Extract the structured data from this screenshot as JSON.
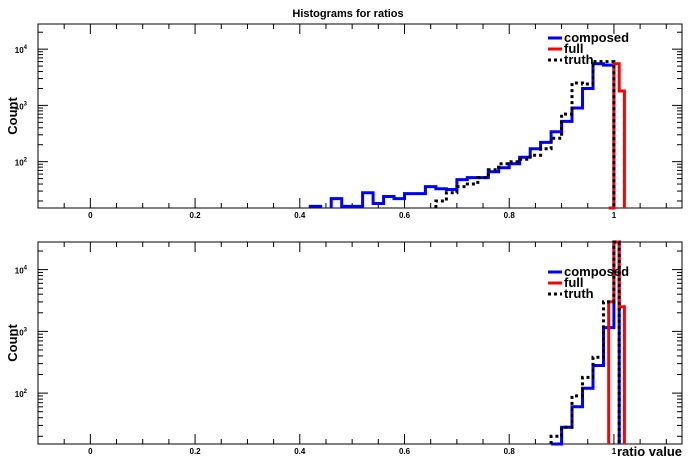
{
  "figure": {
    "title": "Histograms for ratios",
    "xlabel": "ratio value"
  },
  "colors": {
    "composed": "#0000ff",
    "full": "#ff0000",
    "truth": "#000000",
    "frame": "#000000"
  },
  "chart_data": [
    {
      "type": "histogram",
      "title": "Histograms for ratios",
      "ylabel": "Count",
      "xlabel": "",
      "xlim": [
        -0.1,
        1.13
      ],
      "ylim": [
        15,
        28000
      ],
      "yscale": "log",
      "grid": false,
      "legend_position": "top-right",
      "x_ticks": [
        "0",
        "0.2",
        "0.4",
        "0.6",
        "0.8",
        "1"
      ],
      "y_ticks": [
        {
          "base": "10",
          "exp": "2"
        },
        {
          "base": "10",
          "exp": "3"
        },
        {
          "base": "10",
          "exp": "4"
        }
      ],
      "series": [
        {
          "name": "composed",
          "bins": [
            [
              0.42,
              0.44,
              16
            ],
            [
              0.46,
              0.48,
              22
            ],
            [
              0.48,
              0.5,
              16
            ],
            [
              0.5,
              0.52,
              16
            ],
            [
              0.52,
              0.54,
              28
            ],
            [
              0.54,
              0.56,
              18
            ],
            [
              0.56,
              0.58,
              24
            ],
            [
              0.58,
              0.6,
              22
            ],
            [
              0.6,
              0.62,
              27
            ],
            [
              0.62,
              0.64,
              27
            ],
            [
              0.64,
              0.66,
              36
            ],
            [
              0.66,
              0.68,
              33
            ],
            [
              0.68,
              0.7,
              32
            ],
            [
              0.7,
              0.72,
              48
            ],
            [
              0.72,
              0.74,
              52
            ],
            [
              0.74,
              0.76,
              52
            ],
            [
              0.76,
              0.78,
              66
            ],
            [
              0.78,
              0.8,
              78
            ],
            [
              0.8,
              0.82,
              92
            ],
            [
              0.82,
              0.84,
              120
            ],
            [
              0.84,
              0.86,
              170
            ],
            [
              0.86,
              0.88,
              220
            ],
            [
              0.88,
              0.9,
              340
            ],
            [
              0.9,
              0.92,
              520
            ],
            [
              0.92,
              0.94,
              900
            ],
            [
              0.94,
              0.96,
              2000
            ],
            [
              0.96,
              0.98,
              5500
            ],
            [
              0.98,
              1.0,
              5200
            ]
          ]
        },
        {
          "name": "full",
          "bins": [
            [
              0.99,
              1.0,
              15
            ],
            [
              1.0,
              1.01,
              5500
            ],
            [
              1.01,
              1.02,
              1800
            ]
          ]
        },
        {
          "name": "truth",
          "bins": [
            [
              0.66,
              0.68,
              20
            ],
            [
              0.68,
              0.7,
              28
            ],
            [
              0.7,
              0.72,
              36
            ],
            [
              0.72,
              0.74,
              40
            ],
            [
              0.74,
              0.76,
              52
            ],
            [
              0.76,
              0.78,
              72
            ],
            [
              0.78,
              0.8,
              92
            ],
            [
              0.8,
              0.82,
              100
            ],
            [
              0.82,
              0.84,
              110
            ],
            [
              0.84,
              0.86,
              130
            ],
            [
              0.86,
              0.88,
              170
            ],
            [
              0.88,
              0.9,
              260
            ],
            [
              0.9,
              0.92,
              700
            ],
            [
              0.92,
              0.94,
              2500
            ],
            [
              0.94,
              0.96,
              2400
            ],
            [
              0.96,
              0.98,
              6000
            ],
            [
              0.98,
              1.0,
              6000
            ]
          ]
        }
      ]
    },
    {
      "type": "histogram",
      "ylabel": "Count",
      "xlabel": "ratio value",
      "xlim": [
        -0.1,
        1.13
      ],
      "ylim": [
        15,
        28000
      ],
      "yscale": "log",
      "grid": false,
      "legend_position": "top-right",
      "x_ticks": [
        "0",
        "0.2",
        "0.4",
        "0.6",
        "0.8",
        "1"
      ],
      "y_ticks": [
        {
          "base": "10",
          "exp": "2"
        },
        {
          "base": "10",
          "exp": "3"
        },
        {
          "base": "10",
          "exp": "4"
        }
      ],
      "series": [
        {
          "name": "composed",
          "bins": [
            [
              0.88,
              0.9,
              15
            ],
            [
              0.9,
              0.92,
              28
            ],
            [
              0.92,
              0.94,
              60
            ],
            [
              0.94,
              0.96,
              120
            ],
            [
              0.96,
              0.98,
              280
            ],
            [
              0.98,
              1.0,
              1150
            ],
            [
              1.0,
              1.01,
              28000
            ]
          ]
        },
        {
          "name": "full",
          "bins": [
            [
              0.99,
              1.0,
              3000
            ],
            [
              1.0,
              1.01,
              28000
            ],
            [
              1.01,
              1.02,
              2500
            ]
          ]
        },
        {
          "name": "truth",
          "bins": [
            [
              0.88,
              0.9,
              20
            ],
            [
              0.9,
              0.92,
              28
            ],
            [
              0.92,
              0.94,
              90
            ],
            [
              0.94,
              0.96,
              180
            ],
            [
              0.96,
              0.98,
              380
            ],
            [
              0.98,
              1.0,
              3000
            ],
            [
              1.0,
              1.01,
              28000
            ]
          ]
        }
      ]
    }
  ]
}
